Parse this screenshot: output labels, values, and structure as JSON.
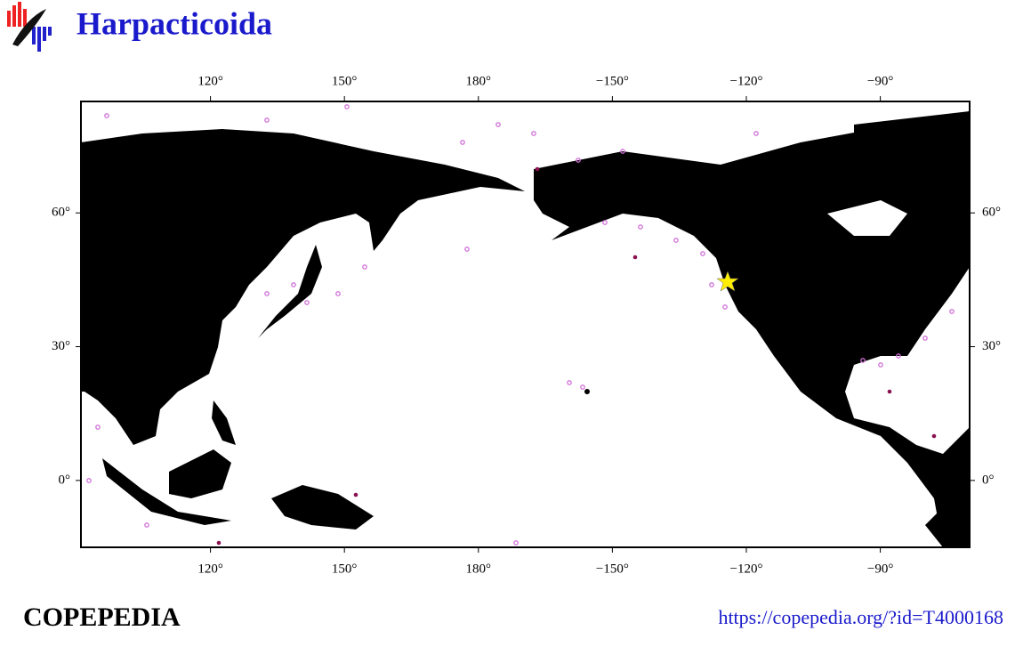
{
  "header": {
    "title": "Harpacticoida"
  },
  "map": {
    "lonlim": [
      91,
      290
    ],
    "latlim": [
      -15,
      85
    ],
    "lon_ticks": [
      {
        "value": 120,
        "label": "120°"
      },
      {
        "value": 150,
        "label": "150°"
      },
      {
        "value": 180,
        "label": "180°"
      },
      {
        "value": 210,
        "label": "−150°"
      },
      {
        "value": 240,
        "label": "−120°"
      },
      {
        "value": 270,
        "label": "−90°"
      }
    ],
    "lat_ticks": [
      {
        "value": 0,
        "label": "0°"
      },
      {
        "value": 30,
        "label": "30°"
      },
      {
        "value": 60,
        "label": "60°"
      }
    ]
  },
  "footer": {
    "brand": "COPEPEDIA",
    "url": "https://copepedia.org/?id=T4000168"
  }
}
